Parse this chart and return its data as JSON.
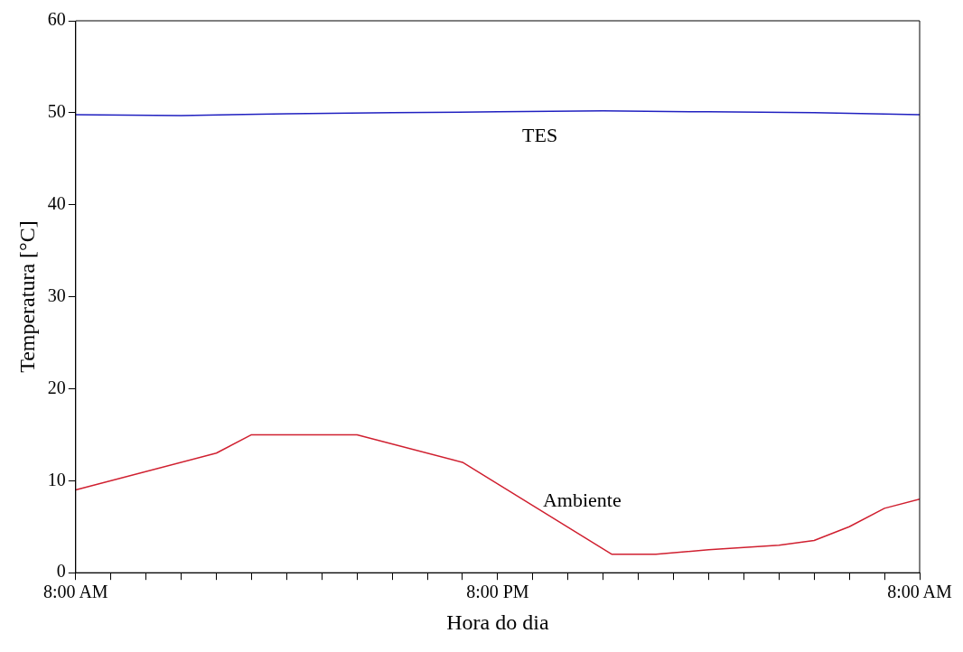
{
  "chart_data": {
    "type": "line",
    "xlabel": "Hora do dia",
    "ylabel": "Temperatura [°C]",
    "xlim": [
      "2000-01-01T08:00",
      "2000-01-02T08:00"
    ],
    "ylim": [
      0,
      60
    ],
    "xticks": [
      {
        "value": "2000-01-01T08:00",
        "label": "8:00 AM"
      },
      {
        "value": "2000-01-01T09:00",
        "label": null
      },
      {
        "value": "2000-01-01T10:00",
        "label": null
      },
      {
        "value": "2000-01-01T11:00",
        "label": null
      },
      {
        "value": "2000-01-01T12:00",
        "label": null
      },
      {
        "value": "2000-01-01T13:00",
        "label": null
      },
      {
        "value": "2000-01-01T14:00",
        "label": null
      },
      {
        "value": "2000-01-01T15:00",
        "label": null
      },
      {
        "value": "2000-01-01T16:00",
        "label": null
      },
      {
        "value": "2000-01-01T17:00",
        "label": null
      },
      {
        "value": "2000-01-01T18:00",
        "label": null
      },
      {
        "value": "2000-01-01T19:00",
        "label": null
      },
      {
        "value": "2000-01-01T20:00",
        "label": "8:00 PM"
      },
      {
        "value": "2000-01-01T21:00",
        "label": null
      },
      {
        "value": "2000-01-01T22:00",
        "label": null
      },
      {
        "value": "2000-01-01T23:00",
        "label": null
      },
      {
        "value": "2000-01-02T00:00",
        "label": null
      },
      {
        "value": "2000-01-02T01:00",
        "label": null
      },
      {
        "value": "2000-01-02T02:00",
        "label": null
      },
      {
        "value": "2000-01-02T03:00",
        "label": null
      },
      {
        "value": "2000-01-02T04:00",
        "label": null
      },
      {
        "value": "2000-01-02T05:00",
        "label": null
      },
      {
        "value": "2000-01-02T06:00",
        "label": null
      },
      {
        "value": "2000-01-02T07:00",
        "label": null
      },
      {
        "value": "2000-01-02T08:00",
        "label": "8:00 AM"
      }
    ],
    "yticks": [
      0,
      10,
      20,
      30,
      40,
      50,
      60
    ],
    "grid": false,
    "legend": false,
    "marker": "none",
    "line_style": "solid",
    "series": [
      {
        "name": "TES",
        "color": "#2020c0",
        "x": [
          "2000-01-01T08:00",
          "2000-01-01T11:00",
          "2000-01-01T14:00",
          "2000-01-01T17:00",
          "2000-01-01T20:00",
          "2000-01-01T23:00",
          "2000-01-02T02:00",
          "2000-01-02T05:00",
          "2000-01-02T08:00"
        ],
        "values": [
          49.8,
          49.7,
          49.9,
          50,
          50.1,
          50.2,
          50.1,
          50,
          49.8
        ]
      },
      {
        "name": "Ambiente",
        "color": "#d02030",
        "x": [
          "2000-01-01T08:00",
          "2000-01-01T12:00",
          "2000-01-01T13:00",
          "2000-01-01T16:00",
          "2000-01-01T19:00",
          "2000-01-01T23:15",
          "2000-01-02T00:30",
          "2000-01-02T02:00",
          "2000-01-02T04:00",
          "2000-01-02T05:00",
          "2000-01-02T06:00",
          "2000-01-02T07:00",
          "2000-01-02T08:00"
        ],
        "values": [
          9,
          13,
          15,
          15,
          12,
          2,
          2,
          2.5,
          3,
          3.5,
          5,
          7,
          8
        ]
      }
    ]
  }
}
